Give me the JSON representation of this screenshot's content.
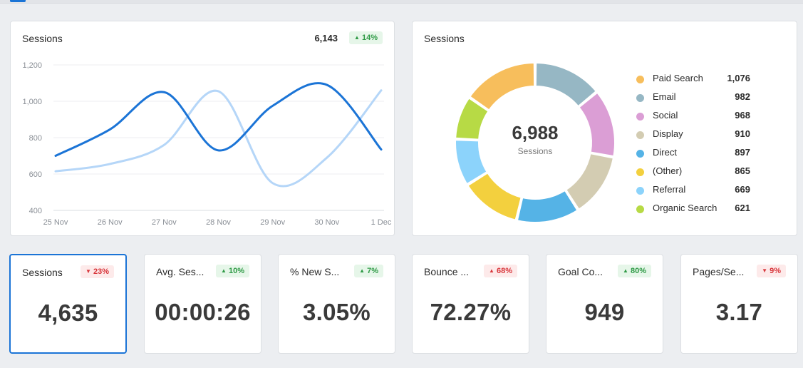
{
  "line_card": {
    "title": "Sessions",
    "total": "6,143",
    "change": "14%",
    "change_dir": "up"
  },
  "donut_card": {
    "title": "Sessions",
    "total": "6,988",
    "total_label": "Sessions"
  },
  "kpis": [
    {
      "title": "Sessions",
      "change": "23%",
      "change_dir": "down",
      "value": "4,635"
    },
    {
      "title": "Avg. Ses...",
      "change": "10%",
      "change_dir": "up",
      "value": "00:00:26"
    },
    {
      "title": "% New S...",
      "change": "7%",
      "change_dir": "up",
      "value": "3.05%"
    },
    {
      "title": "Bounce ...",
      "change": "68%",
      "change_dir": "up",
      "value": "72.27%"
    },
    {
      "title": "Goal Co...",
      "change": "80%",
      "change_dir": "up",
      "value": "949"
    },
    {
      "title": "Pages/Se...",
      "change": "9%",
      "change_dir": "down",
      "value": "3.17"
    }
  ],
  "colors": {
    "accent": "#1b74d6",
    "up": "#2e9a45",
    "down": "#d8363b"
  },
  "chart_data": [
    {
      "type": "line",
      "title": "Sessions",
      "x": [
        "25 Nov",
        "26 Nov",
        "27 Nov",
        "28 Nov",
        "29 Nov",
        "30 Nov",
        "1 Dec"
      ],
      "yticks": [
        400,
        600,
        800,
        1000,
        1200
      ],
      "ylim": [
        400,
        1200
      ],
      "grid": true,
      "series": [
        {
          "color": "#1b74d6",
          "values": [
            700,
            845,
            1050,
            730,
            975,
            1090,
            735
          ]
        },
        {
          "color": "#b5d6f8",
          "values": [
            615,
            655,
            760,
            1055,
            550,
            690,
            1060
          ]
        }
      ]
    },
    {
      "type": "pie",
      "title": "Sessions",
      "legend": "right",
      "slices": [
        {
          "label": "Paid Search",
          "value": 1076,
          "display": "1,076",
          "color": "#f7be5c"
        },
        {
          "label": "Email",
          "value": 982,
          "display": "982",
          "color": "#96b7c4"
        },
        {
          "label": "Social",
          "value": 968,
          "display": "968",
          "color": "#db9ed5"
        },
        {
          "label": "Display",
          "value": 910,
          "display": "910",
          "color": "#d3ccb2"
        },
        {
          "label": "Direct",
          "value": 897,
          "display": "897",
          "color": "#55b3e6"
        },
        {
          "label": "(Other)",
          "value": 865,
          "display": "865",
          "color": "#f3d03e"
        },
        {
          "label": "Referral",
          "value": 669,
          "display": "669",
          "color": "#8cd3fb"
        },
        {
          "label": "Organic Search",
          "value": 621,
          "display": "621",
          "color": "#b7da45"
        }
      ]
    }
  ]
}
